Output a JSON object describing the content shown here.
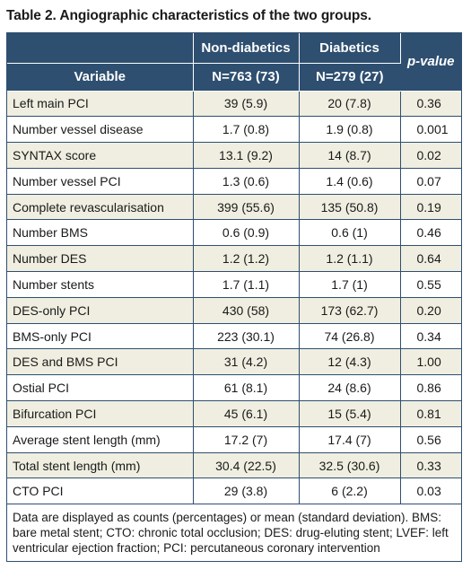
{
  "title": "Table 2. Angiographic characteristics of the two groups.",
  "header": {
    "group1_name": "Non-diabetics",
    "group1_n": "N=763 (73)",
    "group2_name": "Diabetics",
    "group2_n": "N=279 (27)",
    "variable": "Variable",
    "pvalue": "p-value"
  },
  "rows": [
    {
      "variable": "Left main PCI",
      "nondiabetics": "39 (5.9)",
      "diabetics": "20 (7.8)",
      "pvalue": "0.36"
    },
    {
      "variable": "Number vessel disease",
      "nondiabetics": "1.7 (0.8)",
      "diabetics": "1.9 (0.8)",
      "pvalue": "0.001"
    },
    {
      "variable": "SYNTAX score",
      "nondiabetics": "13.1 (9.2)",
      "diabetics": "14 (8.7)",
      "pvalue": "0.02"
    },
    {
      "variable": "Number vessel PCI",
      "nondiabetics": "1.3 (0.6)",
      "diabetics": "1.4 (0.6)",
      "pvalue": "0.07"
    },
    {
      "variable": "Complete revascularisation",
      "nondiabetics": "399 (55.6)",
      "diabetics": "135 (50.8)",
      "pvalue": "0.19"
    },
    {
      "variable": "Number BMS",
      "nondiabetics": "0.6 (0.9)",
      "diabetics": "0.6 (1)",
      "pvalue": "0.46"
    },
    {
      "variable": "Number DES",
      "nondiabetics": "1.2 (1.2)",
      "diabetics": "1.2 (1.1)",
      "pvalue": "0.64"
    },
    {
      "variable": "Number stents",
      "nondiabetics": "1.7 (1.1)",
      "diabetics": "1.7 (1)",
      "pvalue": "0.55"
    },
    {
      "variable": "DES-only PCI",
      "nondiabetics": "430 (58)",
      "diabetics": "173 (62.7)",
      "pvalue": "0.20"
    },
    {
      "variable": "BMS-only PCI",
      "nondiabetics": "223 (30.1)",
      "diabetics": "74 (26.8)",
      "pvalue": "0.34"
    },
    {
      "variable": "DES and BMS PCI",
      "nondiabetics": "31 (4.2)",
      "diabetics": "12 (4.3)",
      "pvalue": "1.00"
    },
    {
      "variable": "Ostial PCI",
      "nondiabetics": "61 (8.1)",
      "diabetics": "24 (8.6)",
      "pvalue": "0.86"
    },
    {
      "variable": "Bifurcation PCI",
      "nondiabetics": "45 (6.1)",
      "diabetics": "15 (5.4)",
      "pvalue": "0.81"
    },
    {
      "variable": "Average stent length (mm)",
      "nondiabetics": "17.2 (7)",
      "diabetics": "17.4 (7)",
      "pvalue": "0.56"
    },
    {
      "variable": "Total stent length (mm)",
      "nondiabetics": "30.4 (22.5)",
      "diabetics": "32.5 (30.6)",
      "pvalue": "0.33"
    },
    {
      "variable": "CTO PCI",
      "nondiabetics": "29 (3.8)",
      "diabetics": "6 (2.2)",
      "pvalue": "0.03"
    }
  ],
  "footnote": "Data are displayed as counts (percentages) or mean (standard deviation). BMS: bare metal stent; CTO: chronic total occlusion; DES: drug-eluting stent; LVEF: left ventricular ejection fraction; PCI: percutaneous coronary intervention",
  "colors": {
    "header_bg": "#2e4f70",
    "shaded_row": "#efeee0",
    "border": "#2e4f70"
  }
}
